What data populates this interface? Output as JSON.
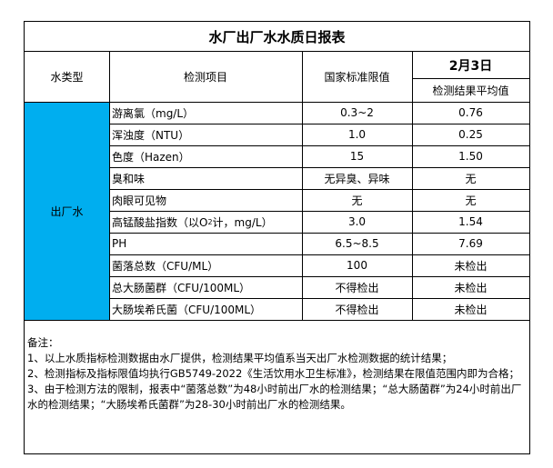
{
  "title": "水厂出厂水水质日报表",
  "header": {
    "water_type": "水类型",
    "item": "检测项目",
    "limit": "国家标准限值",
    "date": "2月3日",
    "result": "检测结果平均值"
  },
  "water_type_value": "出厂水",
  "colors": {
    "water_type_cell": "#00AEEF"
  },
  "rows": [
    {
      "item": "游离氯（mg/L）",
      "limit": "0.3~2",
      "result": "0.76"
    },
    {
      "item": "浑浊度（NTU）",
      "limit": "1.0",
      "result": "0.25"
    },
    {
      "item": "色度（Hazen）",
      "limit": "15",
      "result": "1.50"
    },
    {
      "item": "臭和味",
      "limit": "无异臭、异味",
      "result": "无"
    },
    {
      "item": "肉眼可见物",
      "limit": "无",
      "result": "无"
    },
    {
      "item_prefix": "高锰酸盐指数（以O",
      "item_sub": "2",
      "item_suffix": "计，mg/L）",
      "limit": "3.0",
      "result": "1.54"
    },
    {
      "item": "PH",
      "limit": "6.5~8.5",
      "result": "7.69"
    },
    {
      "item": "菌落总数（CFU/ML）",
      "limit": "100",
      "result": "未检出"
    },
    {
      "item": "总大肠菌群（CFU/100ML）",
      "limit": "不得检出",
      "result": "未检出"
    },
    {
      "item": "大肠埃希氏菌（CFU/100ML）",
      "limit": "不得检出",
      "result": "未检出"
    }
  ],
  "notes": {
    "heading": "备注：",
    "lines": [
      "1、以上水质指标检测数据由水厂提供，检测结果平均值系当天出厂水检测数据的统计结果；",
      "2、检测指标及指标限值均执行GB5749-2022《生活饮用水卫生标准》，检测结果在限值范围内即为合格；",
      "3、由于检测方法的限制，报表中“菌落总数”为48小时前出厂水的检测结果；“总大肠菌群”为24小时前出厂水的检测结果；“大肠埃希氏菌群”为28-30小时前出厂水的检测结果。"
    ]
  }
}
